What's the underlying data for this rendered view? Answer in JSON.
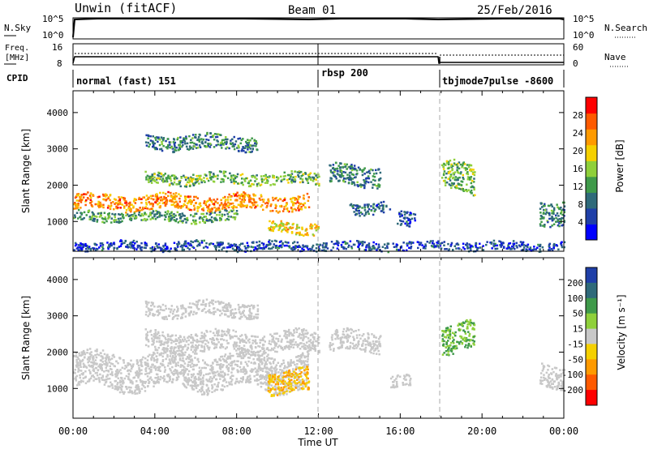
{
  "header": {
    "station": "Unwin (fitACF)",
    "beam": "Beam 01",
    "date": "25/Feb/2016"
  },
  "left_labels": {
    "nsky": "N.Sky",
    "freq_line1": "Freq.",
    "freq_line2": "[MHz]",
    "cpid": "CPID",
    "nsky_top_tick": "10^5",
    "nsky_bottom_tick": "10^0",
    "freq_top_tick": "16",
    "freq_bottom_tick": "8"
  },
  "right_labels": {
    "nsearch": "N.Search",
    "nave": "Nave",
    "nsearch_top_tick": "10^5",
    "nsearch_bottom_tick": "10^0",
    "nave_top_tick": "60",
    "nave_bottom_tick": "0"
  },
  "cpid_segments": [
    {
      "label": "normal (fast) 151",
      "start_hour": 0
    },
    {
      "label": "rbsp 200",
      "start_hour": 12
    },
    {
      "label": "tbjmode7pulse -8600",
      "start_hour": 18
    }
  ],
  "panels": {
    "power": {
      "colorbar_label": "Power [dB]"
    },
    "velocity": {
      "colorbar_label": "Velocity [m s⁻¹]"
    }
  },
  "chart_data": [
    {
      "type": "heatmap",
      "title": "Power",
      "xlabel": "Time UT",
      "ylabel": "Slant Range [km]",
      "xlim": [
        0,
        24
      ],
      "ylim": [
        180,
        4600
      ],
      "x_ticks": [
        "00:00",
        "04:00",
        "08:00",
        "12:00",
        "16:00",
        "20:00",
        "00:00"
      ],
      "y_ticks": [
        1000,
        2000,
        3000,
        4000
      ],
      "colorbar": {
        "label": "Power [dB]",
        "ticks": [
          4,
          8,
          12,
          16,
          20,
          24,
          28
        ],
        "range": [
          0,
          32
        ],
        "colors": [
          "#0000ff",
          "#1f3fa8",
          "#2f6a7a",
          "#3f9a4a",
          "#8fd03a",
          "#f5d000",
          "#ff9a00",
          "#ff5a00",
          "#ff0000"
        ]
      },
      "regions": [
        {
          "t0": 0,
          "t1": 11.5,
          "r_center": 1550,
          "r_width": 260,
          "power_db": 24,
          "note": "main band"
        },
        {
          "t0": 0,
          "t1": 8,
          "r_center": 1150,
          "r_width": 180,
          "power_db": 12
        },
        {
          "t0": 3.5,
          "t1": 12,
          "r_center": 2200,
          "r_width": 200,
          "power_db": 14
        },
        {
          "t0": 3.5,
          "t1": 9,
          "r_center": 3200,
          "r_width": 250,
          "power_db": 10
        },
        {
          "t0": 9.5,
          "t1": 12,
          "r_center": 850,
          "r_width": 200,
          "power_db": 20,
          "note": "rising branch"
        },
        {
          "t0": 12.5,
          "t1": 15,
          "r_center": 2300,
          "r_width": 350,
          "power_db": 10
        },
        {
          "t0": 13.5,
          "t1": 15.5,
          "r_center": 1400,
          "r_width": 200,
          "power_db": 8
        },
        {
          "t0": 15.8,
          "t1": 16.7,
          "r_center": 1100,
          "r_width": 250,
          "power_db": 6
        },
        {
          "t0": 18,
          "t1": 19.6,
          "r_center": 2200,
          "r_width": 500,
          "power_db": 14
        },
        {
          "t0": 22.8,
          "t1": 24,
          "r_center": 1300,
          "r_width": 400,
          "power_db": 10
        },
        {
          "t0": 0,
          "t1": 24,
          "r_center": 350,
          "r_width": 150,
          "power_db": 6,
          "note": "ground/near-range clutter"
        }
      ]
    },
    {
      "type": "heatmap",
      "title": "Velocity",
      "xlabel": "Time UT",
      "ylabel": "Slant Range [km]",
      "xlim": [
        0,
        24
      ],
      "ylim": [
        180,
        4600
      ],
      "x_ticks": [
        "00:00",
        "04:00",
        "08:00",
        "12:00",
        "16:00",
        "20:00",
        "00:00"
      ],
      "y_ticks": [
        1000,
        2000,
        3000,
        4000
      ],
      "colorbar": {
        "label": "Velocity [m s⁻¹]",
        "ticks": [
          200,
          100,
          50,
          15,
          -15,
          -50,
          -100,
          -200
        ],
        "colors": [
          "#1f3fa8",
          "#2f6a7a",
          "#3f9a4a",
          "#8fd03a",
          "#c8c8c8",
          "#f5d000",
          "#ff9a00",
          "#ff5a00",
          "#ff0000"
        ]
      },
      "regions": [
        {
          "t0": 0,
          "t1": 11.5,
          "r_center": 1500,
          "r_width": 600,
          "velocity": 0,
          "note": "ground scatter (grey)"
        },
        {
          "t0": 9.5,
          "t1": 11.5,
          "r_center": 1200,
          "r_width": 400,
          "velocity": -50
        },
        {
          "t0": 3.5,
          "t1": 12,
          "r_center": 2300,
          "r_width": 350,
          "velocity": 0
        },
        {
          "t0": 3.5,
          "t1": 9,
          "r_center": 3200,
          "r_width": 250,
          "velocity": 0
        },
        {
          "t0": 12.5,
          "t1": 15,
          "r_center": 2300,
          "r_width": 350,
          "velocity": 0
        },
        {
          "t0": 15.5,
          "t1": 16.5,
          "r_center": 1200,
          "r_width": 200,
          "velocity": 0
        },
        {
          "t0": 18,
          "t1": 19.6,
          "r_center": 2400,
          "r_width": 500,
          "velocity": 30
        },
        {
          "t0": 22.8,
          "t1": 24,
          "r_center": 1300,
          "r_width": 400,
          "velocity": 0
        }
      ]
    }
  ]
}
